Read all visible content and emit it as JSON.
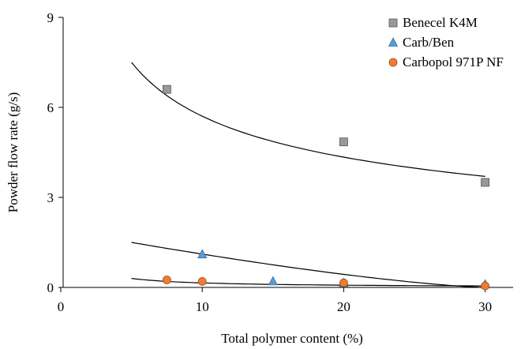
{
  "chart_data": {
    "type": "scatter",
    "title": "",
    "xlabel": "Total polymer content (%)",
    "ylabel": "Powder flow rate (g/s)",
    "xlim": [
      0,
      32
    ],
    "ylim": [
      0,
      9
    ],
    "xticks": [
      0,
      10,
      20,
      30
    ],
    "yticks": [
      0,
      3,
      6,
      9
    ],
    "grid": false,
    "legend_position": "top-right",
    "series": [
      {
        "name": "Benecel K4M",
        "marker": "square",
        "color": "#999999",
        "x": [
          7.5,
          20,
          30
        ],
        "y": [
          6.6,
          4.85,
          3.5
        ],
        "trendline": {
          "x": [
            5,
            30
          ],
          "y": [
            7.5,
            3.7
          ]
        }
      },
      {
        "name": "Carb/Ben",
        "marker": "triangle",
        "color": "#5b9bd5",
        "x": [
          10,
          15,
          20,
          30
        ],
        "y": [
          1.1,
          0.2,
          0.15,
          0.1
        ],
        "trendline": {
          "x": [
            5,
            30
          ],
          "y": [
            1.5,
            0.0
          ]
        }
      },
      {
        "name": "Carbopol 971P NF",
        "marker": "circle",
        "color": "#ed7d31",
        "x": [
          7.5,
          10,
          20,
          30
        ],
        "y": [
          0.25,
          0.2,
          0.15,
          0.05
        ],
        "trendline": {
          "x": [
            5,
            30
          ],
          "y": [
            0.3,
            0.05
          ]
        }
      }
    ]
  }
}
